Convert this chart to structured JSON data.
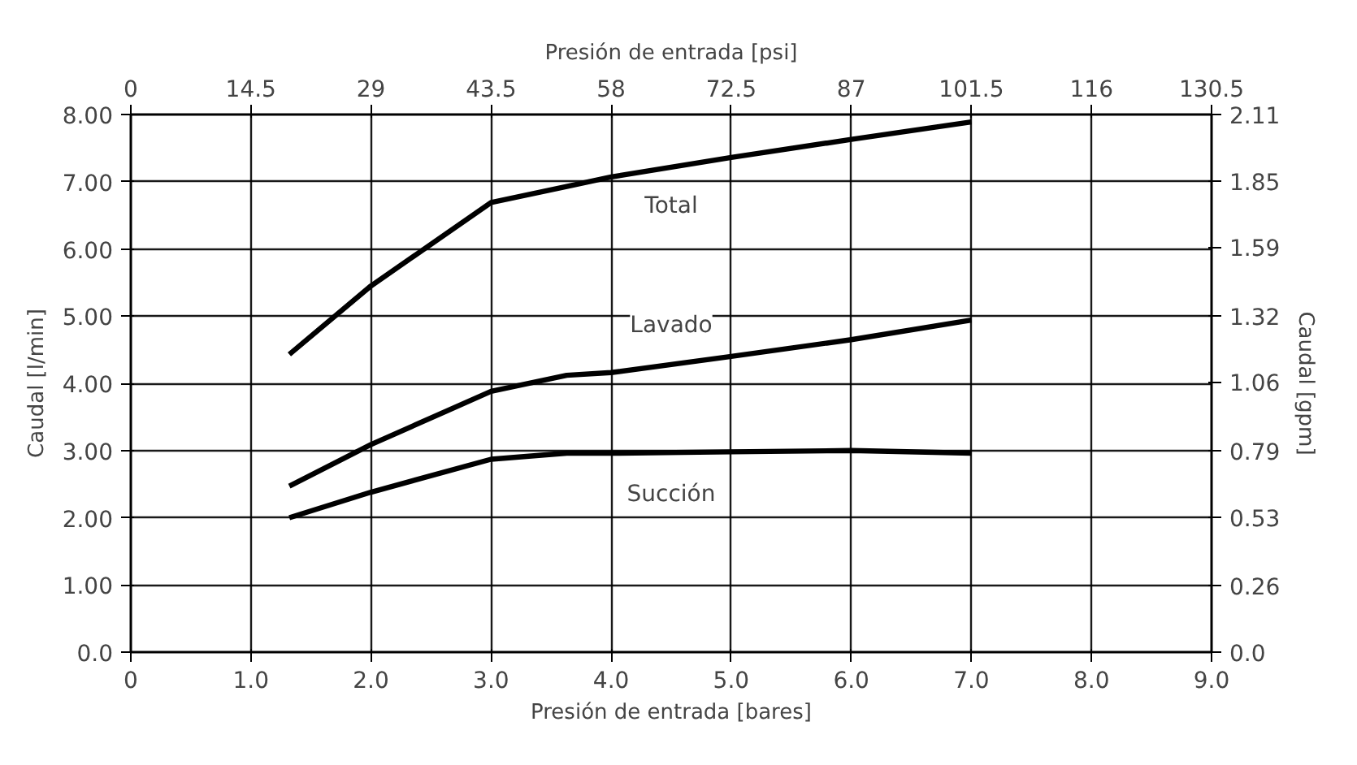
{
  "chart_data": {
    "type": "line",
    "xlabel": "Presión de entrada [bares]",
    "x2label": "Presión de entrada [psi]",
    "ylabel": "Caudal [l/min]",
    "y2label": "Caudal [gpm]",
    "xlim": [
      0,
      9
    ],
    "xticks": [
      0,
      {
        "value": 1,
        "label": "1.0"
      },
      {
        "value": 2,
        "label": "2.0"
      },
      {
        "value": 3,
        "label": "3.0"
      },
      {
        "value": 4,
        "label": "4.0"
      },
      {
        "value": 5,
        "label": "5.0"
      },
      {
        "value": 6,
        "label": "6.0"
      },
      {
        "value": 7,
        "label": "7.0"
      },
      {
        "value": 8,
        "label": "8.0"
      },
      {
        "value": 9,
        "label": "9.0"
      }
    ],
    "x2lim": [
      0,
      130.5
    ],
    "x2ticks": [
      0,
      14.5,
      29,
      43.5,
      58,
      72.5,
      87,
      101.5,
      116,
      130.5
    ],
    "ylim": [
      0,
      8
    ],
    "yticks": [
      {
        "value": 0,
        "label": "0.0"
      },
      {
        "value": 1,
        "label": "1.00"
      },
      {
        "value": 2,
        "label": "2.00"
      },
      {
        "value": 3,
        "label": "3.00"
      },
      {
        "value": 4,
        "label": "4.00"
      },
      {
        "value": 5,
        "label": "5.00"
      },
      {
        "value": 6,
        "label": "6.00"
      },
      {
        "value": 7,
        "label": "7.00"
      },
      {
        "value": 8,
        "label": "8.00"
      }
    ],
    "y2lim": [
      0,
      2.11
    ],
    "y2ticks": [
      {
        "value": 0,
        "label": "0.0"
      },
      0.26,
      0.53,
      0.79,
      1.06,
      1.32,
      1.59,
      1.85,
      2.11
    ],
    "grid": true,
    "marker": "none",
    "line_style": "solid",
    "x": [
      1.32,
      2.0,
      3.0,
      3.63,
      4.0,
      5.0,
      6.0,
      7.0
    ],
    "series": [
      {
        "name": "Total",
        "color": "#000000",
        "values": [
          4.43,
          5.45,
          6.69,
          6.93,
          7.07,
          7.36,
          7.63,
          7.89
        ]
      },
      {
        "name": "Lavado",
        "color": "#000000",
        "values": [
          2.47,
          3.09,
          3.88,
          4.12,
          4.16,
          4.4,
          4.65,
          4.94
        ]
      },
      {
        "name": "Succión",
        "color": "#000000",
        "values": [
          2.0,
          2.38,
          2.87,
          2.96,
          2.96,
          2.98,
          3.0,
          2.96
        ]
      }
    ]
  }
}
